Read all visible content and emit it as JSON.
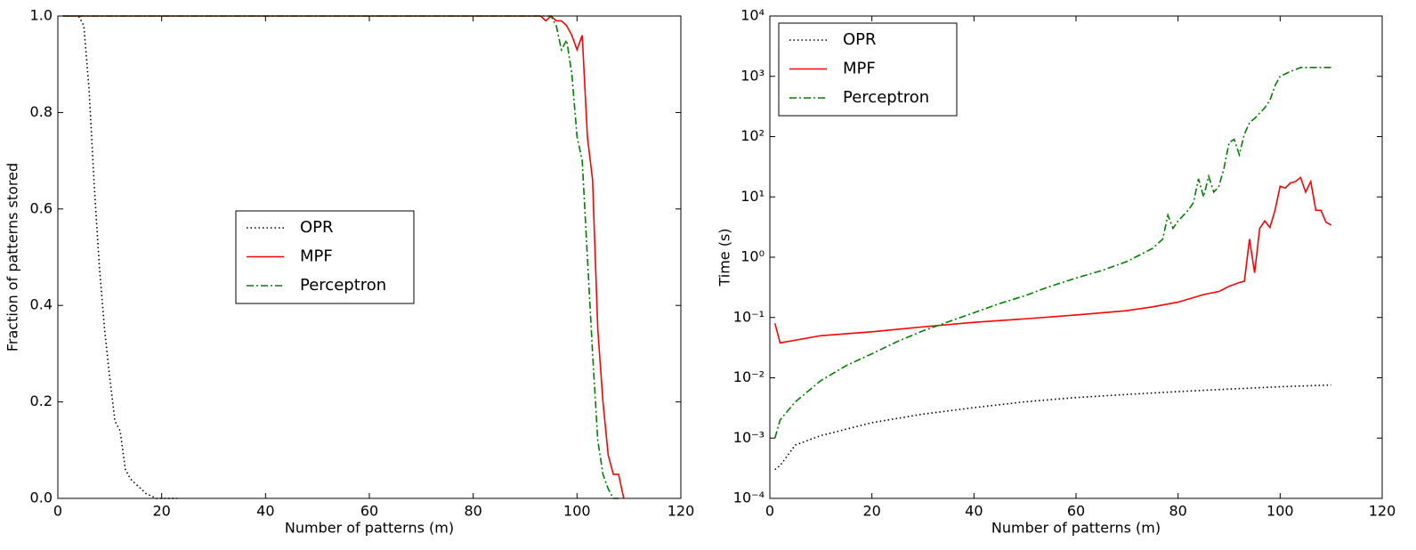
{
  "chart_data": [
    {
      "type": "line",
      "xlabel": "Number of patterns (m)",
      "ylabel": "Fraction of patterns stored",
      "xlim": [
        0,
        120
      ],
      "ylim": [
        0,
        1
      ],
      "xticks": [
        0,
        20,
        40,
        60,
        80,
        100,
        120
      ],
      "yticks": [
        {
          "value": 0,
          "label": "0.0"
        },
        0.2,
        0.4,
        0.6,
        0.8,
        {
          "value": 1,
          "label": "1.0"
        }
      ],
      "legend": "center",
      "series": [
        {
          "name": "OPR",
          "color": "#000000",
          "style": "dotted",
          "x": [
            1,
            4,
            5,
            6,
            7,
            8,
            9,
            10,
            11,
            12,
            13,
            14,
            15,
            16,
            17,
            18,
            19,
            23
          ],
          "values": [
            1,
            1,
            0.98,
            0.85,
            0.65,
            0.48,
            0.35,
            0.25,
            0.16,
            0.14,
            0.06,
            0.04,
            0.03,
            0.02,
            0.01,
            0.005,
            0,
            0
          ]
        },
        {
          "name": "MPF",
          "color": "#ff0000",
          "style": "solid",
          "x": [
            1,
            93,
            94,
            95,
            96,
            97,
            98,
            99,
            100,
            101,
            102,
            103,
            104,
            105,
            106,
            107,
            108,
            109
          ],
          "values": [
            1,
            1,
            0.99,
            1,
            0.99,
            0.99,
            0.98,
            0.96,
            0.93,
            0.96,
            0.75,
            0.66,
            0.35,
            0.2,
            0.09,
            0.05,
            0.05,
            0
          ]
        },
        {
          "name": "Perceptron",
          "color": "#008000",
          "style": "dashdot",
          "x": [
            1,
            95,
            96,
            97,
            98,
            99,
            100,
            101,
            102,
            103,
            104,
            105,
            106,
            107,
            108
          ],
          "values": [
            1,
            1,
            0.98,
            0.93,
            0.95,
            0.88,
            0.75,
            0.7,
            0.5,
            0.3,
            0.12,
            0.05,
            0.02,
            0,
            0
          ]
        }
      ]
    },
    {
      "type": "line",
      "xlabel": "Number of patterns (m)",
      "ylabel": "Time (s)",
      "xlim": [
        0,
        120
      ],
      "ylim": [
        0.0001,
        10000
      ],
      "yscale": "log",
      "xticks": [
        0,
        20,
        40,
        60,
        80,
        100,
        120
      ],
      "yticks": [
        {
          "value": 0.0001,
          "label": "10⁻⁴"
        },
        {
          "value": 0.001,
          "label": "10⁻³"
        },
        {
          "value": 0.01,
          "label": "10⁻²"
        },
        {
          "value": 0.1,
          "label": "10⁻¹"
        },
        {
          "value": 1,
          "label": "10⁰"
        },
        {
          "value": 10,
          "label": "10¹"
        },
        {
          "value": 100,
          "label": "10²"
        },
        {
          "value": 1000,
          "label": "10³"
        },
        {
          "value": 10000,
          "label": "10⁴"
        }
      ],
      "legend": "upper left",
      "series": [
        {
          "name": "OPR",
          "color": "#000000",
          "style": "dotted",
          "x": [
            1,
            2,
            5,
            10,
            20,
            30,
            40,
            50,
            60,
            70,
            80,
            90,
            100,
            110
          ],
          "values": [
            0.0003,
            0.00035,
            0.00077,
            0.0011,
            0.0018,
            0.0025,
            0.0032,
            0.004,
            0.0047,
            0.0053,
            0.0059,
            0.0065,
            0.0071,
            0.0076
          ]
        },
        {
          "name": "MPF",
          "color": "#ff0000",
          "style": "solid",
          "x": [
            1,
            2,
            5,
            10,
            20,
            30,
            40,
            50,
            60,
            70,
            75,
            80,
            85,
            88,
            90,
            92,
            93,
            94,
            95,
            96,
            97,
            98,
            99,
            100,
            101,
            102,
            103,
            104,
            105,
            106,
            107,
            108,
            109,
            110
          ],
          "values": [
            0.08,
            0.038,
            0.042,
            0.05,
            0.058,
            0.07,
            0.083,
            0.095,
            0.11,
            0.13,
            0.15,
            0.18,
            0.24,
            0.27,
            0.33,
            0.38,
            0.4,
            2,
            0.55,
            3,
            4,
            3.1,
            6,
            15,
            14,
            17,
            18,
            21,
            12,
            18,
            6,
            6,
            3.8,
            3.4
          ]
        },
        {
          "name": "Perceptron",
          "color": "#008000",
          "style": "dashdot",
          "x": [
            1,
            2,
            5,
            10,
            15,
            20,
            25,
            30,
            35,
            40,
            45,
            50,
            55,
            60,
            65,
            70,
            75,
            77,
            78,
            79,
            80,
            82,
            83,
            84,
            85,
            86,
            87,
            88,
            89,
            90,
            91,
            92,
            93,
            94,
            95,
            97,
            98,
            99,
            100,
            102,
            104,
            106,
            108,
            110
          ],
          "values": [
            0.001,
            0.002,
            0.004,
            0.009,
            0.016,
            0.025,
            0.04,
            0.06,
            0.085,
            0.12,
            0.17,
            0.23,
            0.33,
            0.45,
            0.6,
            0.85,
            1.4,
            2,
            5,
            3,
            4,
            6,
            8,
            20,
            10,
            22,
            12,
            15,
            30,
            80,
            90,
            50,
            110,
            170,
            200,
            300,
            400,
            700,
            1000,
            1200,
            1400,
            1400,
            1400,
            1400
          ]
        }
      ]
    }
  ]
}
